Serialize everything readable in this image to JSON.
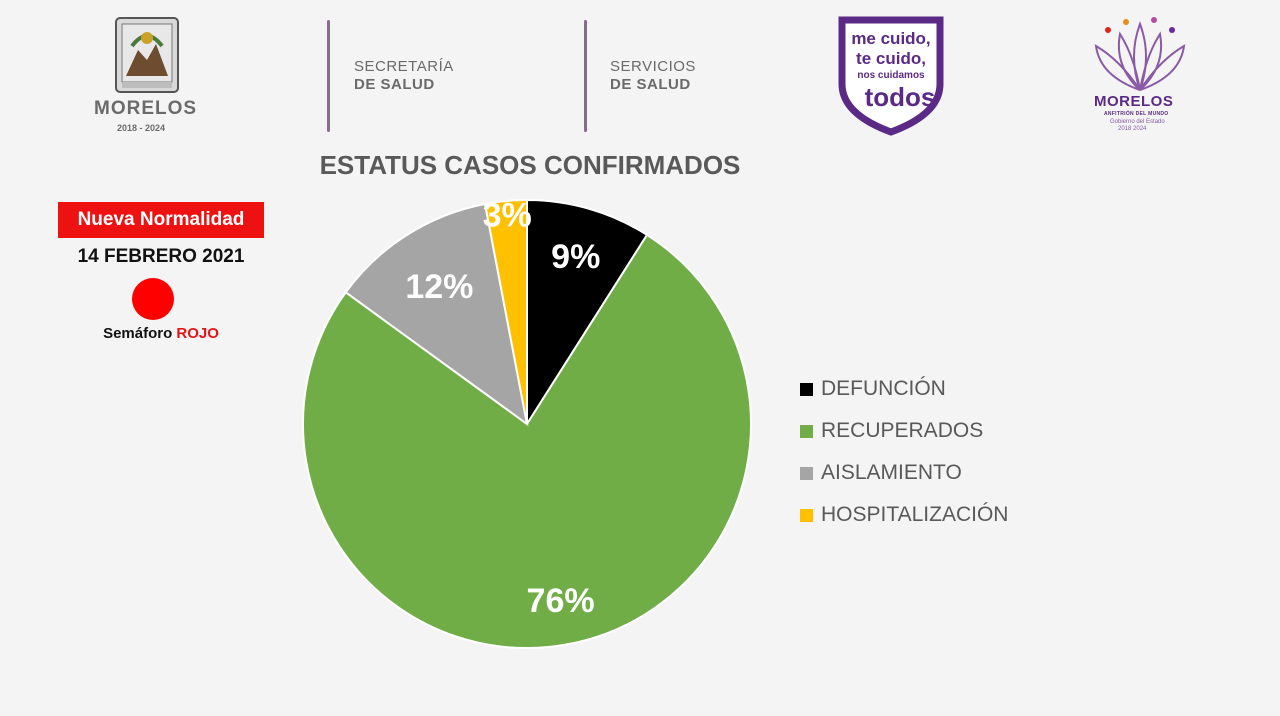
{
  "header": {
    "state_logo": {
      "name": "MORELOS",
      "years": "2018 - 2024",
      "icon": "state-coat-of-arms-icon"
    },
    "secretaria": {
      "line1": "SECRETARÍA",
      "line2": "DE SALUD"
    },
    "servicios": {
      "line1": "SERVICIOS",
      "line2": "DE SALUD"
    },
    "campaign": {
      "line1": "me cuido,",
      "line2": "te cuido,",
      "line3": "nos cuidamos",
      "line4": "todos",
      "color": "#5b2a86"
    },
    "gov_logo": {
      "name": "MORELOS",
      "tagline": "ANFITRIÓN DEL MUNDO",
      "sub1": "Gobierno del Estado",
      "sub2": "2018 2024",
      "icon": "lotus-flower-icon",
      "color": "#5b2a86"
    }
  },
  "status": {
    "badge": "Nueva Normalidad",
    "date": "14 FEBRERO 2021",
    "semaforo_label": "Semáforo",
    "semaforo_value": "ROJO",
    "semaforo_color": "#ff0000"
  },
  "chart_data": {
    "type": "pie",
    "title": "ESTATUS CASOS CONFIRMADOS",
    "categories": [
      "DEFUNCIÓN",
      "RECUPERADOS",
      "AISLAMIENTO",
      "HOSPITALIZACIÓN"
    ],
    "values": [
      9,
      76,
      12,
      3
    ],
    "labels": [
      "9%",
      "76%",
      "12%",
      "3%"
    ],
    "colors": [
      "#000000",
      "#70ad47",
      "#a5a5a5",
      "#ffc000"
    ],
    "legend_position": "right"
  }
}
